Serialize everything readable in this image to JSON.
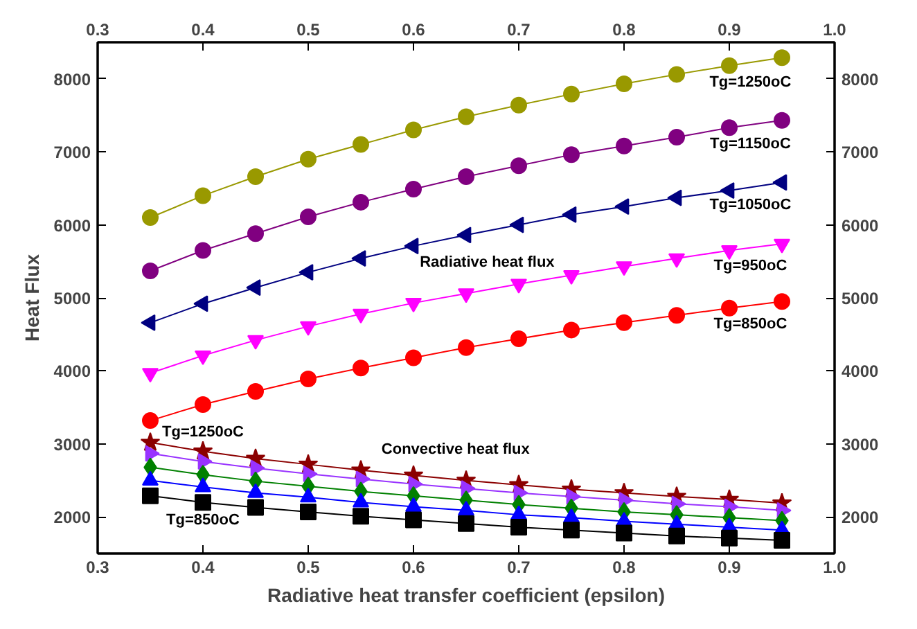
{
  "chart_data": {
    "type": "line",
    "xlabel": "Radiative heat transfer coefficient (epsilon)",
    "ylabel": "Heat Flux",
    "x": [
      0.35,
      0.4,
      0.45,
      0.5,
      0.55,
      0.6,
      0.65,
      0.7,
      0.75,
      0.8,
      0.85,
      0.9,
      0.95
    ],
    "xlim": [
      0.3,
      1.0
    ],
    "xticks": [
      0.3,
      0.4,
      0.5,
      0.6,
      0.7,
      0.8,
      0.9,
      {
        "value": 1,
        "label": "1.0"
      }
    ],
    "x2lim": [
      0.3,
      1.0
    ],
    "x2ticks": [
      0.3,
      0.4,
      0.5,
      0.6,
      0.7,
      0.8,
      0.9,
      {
        "value": 1,
        "label": "1.0"
      }
    ],
    "ylim": [
      1500,
      8500
    ],
    "yticks": [
      2000,
      3000,
      4000,
      5000,
      6000,
      7000,
      8000
    ],
    "y2lim": [
      1500,
      8500
    ],
    "y2ticks": [
      2000,
      3000,
      4000,
      5000,
      6000,
      7000,
      8000
    ],
    "grid": false,
    "series": [
      {
        "color": "#999900",
        "marker": "circle",
        "values": [
          6100,
          6400,
          6660,
          6900,
          7100,
          7300,
          7480,
          7640,
          7790,
          7930,
          8060,
          8180,
          8290
        ]
      },
      {
        "color": "#800080",
        "marker": "circle",
        "values": [
          5370,
          5650,
          5880,
          6110,
          6310,
          6490,
          6660,
          6810,
          6960,
          7080,
          7200,
          7330,
          7430
        ]
      },
      {
        "color": "#000080",
        "marker": "triangle-left",
        "values": [
          4660,
          4920,
          5140,
          5350,
          5540,
          5710,
          5860,
          6000,
          6140,
          6250,
          6370,
          6470,
          6580
        ]
      },
      {
        "color": "#ff00ff",
        "marker": "triangle-down",
        "values": [
          3970,
          4210,
          4420,
          4610,
          4780,
          4930,
          5060,
          5190,
          5310,
          5430,
          5540,
          5650,
          5740
        ]
      },
      {
        "color": "#ff0000",
        "marker": "circle",
        "values": [
          3320,
          3540,
          3720,
          3890,
          4040,
          4180,
          4320,
          4440,
          4560,
          4660,
          4760,
          4860,
          4950
        ]
      },
      {
        "color": "#8b0000",
        "marker": "star",
        "values": [
          3020,
          2900,
          2800,
          2720,
          2640,
          2570,
          2500,
          2440,
          2380,
          2330,
          2280,
          2240,
          2190
        ]
      },
      {
        "color": "#9933ff",
        "marker": "triangle-right",
        "values": [
          2870,
          2760,
          2670,
          2590,
          2520,
          2450,
          2390,
          2330,
          2280,
          2230,
          2180,
          2140,
          2090
        ]
      },
      {
        "color": "#008000",
        "marker": "diamond",
        "values": [
          2680,
          2580,
          2490,
          2420,
          2350,
          2290,
          2230,
          2170,
          2120,
          2070,
          2030,
          1990,
          1950
        ]
      },
      {
        "color": "#0000ff",
        "marker": "triangle",
        "values": [
          2500,
          2410,
          2330,
          2270,
          2200,
          2140,
          2090,
          2030,
          1990,
          1940,
          1900,
          1860,
          1820
        ]
      },
      {
        "color": "#000000",
        "marker": "square",
        "values": [
          2290,
          2200,
          2130,
          2070,
          2010,
          1960,
          1910,
          1860,
          1820,
          1780,
          1740,
          1710,
          1680
        ]
      }
    ],
    "annotations": [
      "Radiative heat flux",
      "Convective heat flux",
      "Tg=1250oC",
      "Tg=1150oC",
      "Tg=1050oC",
      "Tg=950oC",
      "Tg=850oC",
      "Tg=1250oC",
      "Tg=850oC"
    ]
  }
}
